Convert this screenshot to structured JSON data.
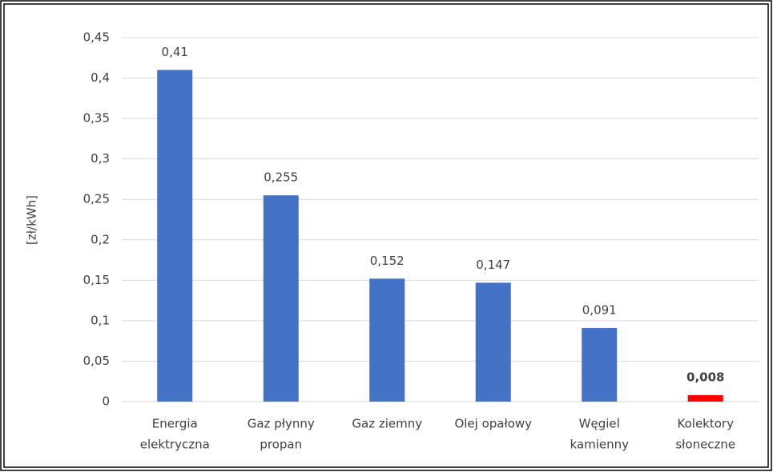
{
  "chart_data": {
    "type": "bar",
    "y_label": "[zł/kWh]",
    "categories": [
      [
        "Energia",
        "elektryczna"
      ],
      [
        "Gaz płynny",
        "propan"
      ],
      [
        "Gaz ziemny"
      ],
      [
        "Olej opałowy"
      ],
      [
        "Węgiel",
        "kamienny"
      ],
      [
        "Kolektory",
        "słoneczne"
      ]
    ],
    "values": [
      0.41,
      0.255,
      0.152,
      0.147,
      0.091,
      0.008
    ],
    "value_labels": [
      "0,41",
      "0,255",
      "0,152",
      "0,147",
      "0,091",
      "0,008"
    ],
    "colors": [
      "#4472c4",
      "#4472c4",
      "#4472c4",
      "#4472c4",
      "#4472c4",
      "#ff0000"
    ],
    "ylim": [
      0,
      0.45
    ],
    "yticks": [
      0,
      {
        "value": 0.05,
        "label": "0,05"
      },
      {
        "value": 0.1,
        "label": "0,1"
      },
      {
        "value": 0.15,
        "label": "0,15"
      },
      {
        "value": 0.2,
        "label": "0,2"
      },
      {
        "value": 0.25,
        "label": "0,25"
      },
      {
        "value": 0.3,
        "label": "0,3"
      },
      {
        "value": 0.35,
        "label": "0,35"
      },
      {
        "value": 0.4,
        "label": "0,4"
      },
      {
        "value": 0.45,
        "label": "0,45"
      }
    ],
    "grid": true
  }
}
